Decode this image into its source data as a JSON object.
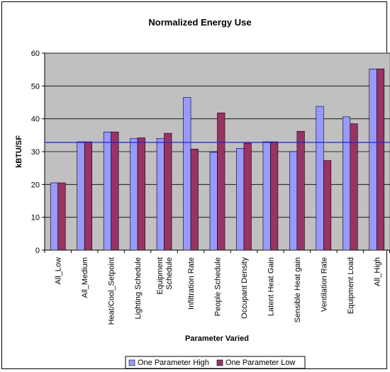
{
  "chart_data": {
    "type": "bar",
    "title": "Normalized Energy Use",
    "xlabel": "Parameter Varied",
    "ylabel": "kBTU/SF",
    "ylim": [
      0,
      60
    ],
    "yticks": [
      0,
      10,
      20,
      30,
      40,
      50,
      60
    ],
    "grid": true,
    "legend_position": "bottom",
    "reference_line": {
      "y": 32.8,
      "color": "#2222dd"
    },
    "categories": [
      [
        "All_Low"
      ],
      [
        "All_Medium"
      ],
      [
        "Heat/Cool_Setpoint"
      ],
      [
        "Lighting Schedule"
      ],
      [
        "Equipment",
        "Schedule"
      ],
      [
        "Infiltration Rate"
      ],
      [
        "People Schedule"
      ],
      [
        "Occupant Density"
      ],
      [
        "Latent Heat Gain"
      ],
      [
        "Sensible Heat gain"
      ],
      [
        "Ventilation Rate"
      ],
      [
        "Equipment Load"
      ],
      [
        "All_High"
      ]
    ],
    "series": [
      {
        "name": "One Parameter High",
        "color": "#9999ff",
        "values": [
          20.5,
          33.0,
          36.0,
          34.0,
          34.0,
          46.5,
          29.8,
          31.0,
          33.0,
          30.0,
          43.8,
          40.6,
          55.2
        ]
      },
      {
        "name": "One Parameter Low",
        "color": "#993366",
        "values": [
          20.5,
          33.0,
          36.0,
          34.2,
          35.6,
          30.8,
          41.8,
          32.6,
          33.0,
          36.2,
          27.3,
          38.5,
          55.2
        ]
      }
    ],
    "colors": {
      "plot_background": "#c0c0c0",
      "gridline": "#000000"
    }
  }
}
